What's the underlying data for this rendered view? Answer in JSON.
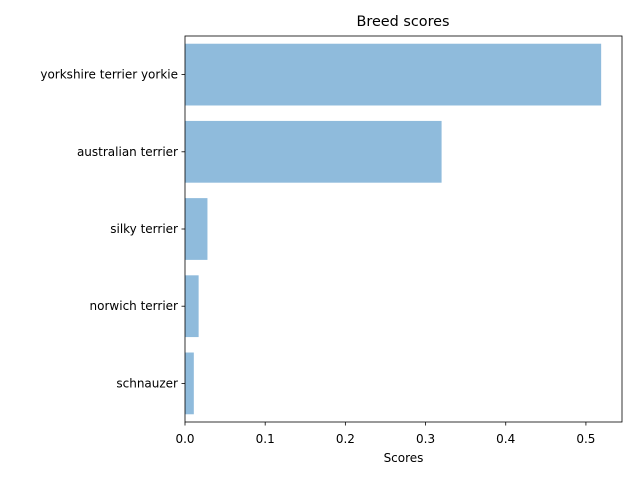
{
  "chart_data": {
    "type": "bar",
    "orientation": "horizontal",
    "title": "Breed scores",
    "xlabel": "Scores",
    "ylabel": "",
    "categories": [
      "yorkshire terrier yorkie",
      "australian terrier",
      "silky terrier",
      "norwich terrier",
      "schnauzer"
    ],
    "values": [
      0.519,
      0.32,
      0.028,
      0.017,
      0.011
    ],
    "xlim": [
      0,
      0.545
    ],
    "xticks": [
      0.0,
      0.1,
      0.2,
      0.3,
      0.4,
      0.5
    ],
    "xtick_labels": [
      "0.0",
      "0.1",
      "0.2",
      "0.3",
      "0.4",
      "0.5"
    ],
    "grid": false,
    "legend": "none",
    "bar_color": "#8fbbdc"
  }
}
